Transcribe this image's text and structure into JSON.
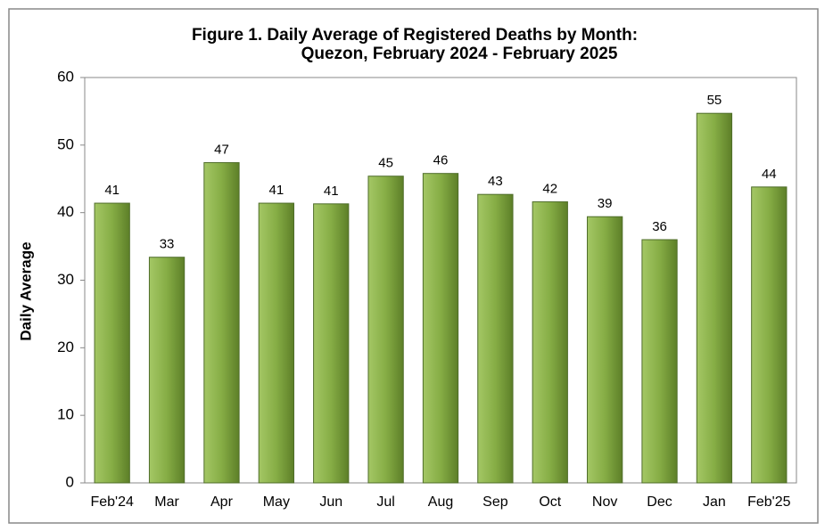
{
  "chart_data": {
    "type": "bar",
    "title": "Figure 1. Daily Average of Registered Deaths by Month:",
    "subtitle": "Quezon, February 2024 - February 2025",
    "y_label": "Daily Average",
    "categories": [
      "Feb'24",
      "Mar",
      "Apr",
      "May",
      "Jun",
      "Jul",
      "Aug",
      "Sep",
      "Oct",
      "Nov",
      "Dec",
      "Jan",
      "Feb'25"
    ],
    "values": [
      41.4,
      33.4,
      47.4,
      41.4,
      41.3,
      45.4,
      45.8,
      42.7,
      41.6,
      39.4,
      36.0,
      54.7,
      43.8
    ],
    "value_labels": [
      "41",
      "33",
      "47",
      "41",
      "41",
      "45",
      "46",
      "43",
      "42",
      "39",
      "36",
      "55",
      "44"
    ],
    "color": "#7aa23a",
    "ylim": [
      0,
      60
    ],
    "yticks": [
      0,
      10,
      20,
      30,
      40,
      50,
      60
    ],
    "grid": false
  }
}
